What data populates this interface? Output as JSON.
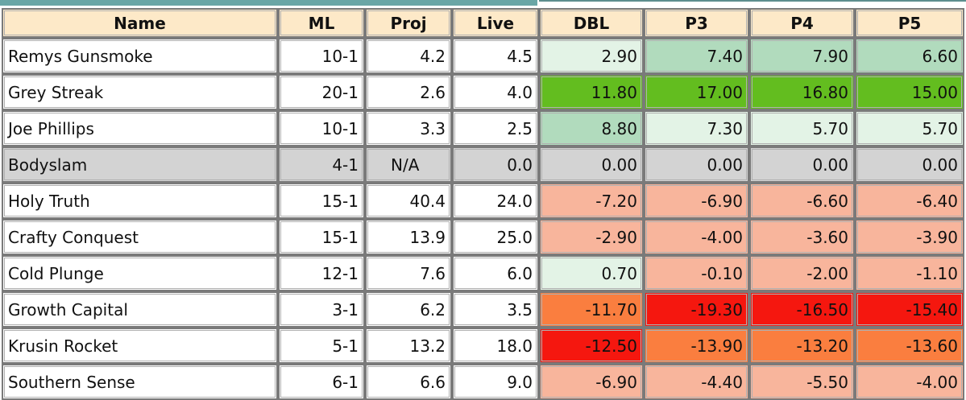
{
  "colors": {
    "header_bg": "#fde9c8",
    "strip": "#6aa6a6",
    "light_green": "#e3f3e6",
    "mid_green": "#b1dbbd",
    "bright_green": "#63bd1f",
    "gray": "#d3d3d3",
    "salmon": "#f8b59c",
    "orange": "#fa7e3f",
    "red": "#f5170f",
    "white": "#ffffff"
  },
  "headers": [
    "Name",
    "ML",
    "Proj",
    "Live",
    "DBL",
    "P3",
    "P4",
    "P5"
  ],
  "rows": [
    {
      "name": "Remys Gunsmoke",
      "ml": "10-1",
      "proj": "4.2",
      "live": "4.5",
      "dbl": {
        "v": "2.90",
        "c": "light_green"
      },
      "p3": {
        "v": "7.40",
        "c": "mid_green"
      },
      "p4": {
        "v": "7.90",
        "c": "mid_green"
      },
      "p5": {
        "v": "6.60",
        "c": "mid_green"
      }
    },
    {
      "name": "Grey Streak",
      "ml": "20-1",
      "proj": "2.6",
      "live": "4.0",
      "dbl": {
        "v": "11.80",
        "c": "bright_green"
      },
      "p3": {
        "v": "17.00",
        "c": "bright_green"
      },
      "p4": {
        "v": "16.80",
        "c": "bright_green"
      },
      "p5": {
        "v": "15.00",
        "c": "bright_green"
      }
    },
    {
      "name": "Joe Phillips",
      "ml": "10-1",
      "proj": "3.3",
      "live": "2.5",
      "dbl": {
        "v": "8.80",
        "c": "mid_green"
      },
      "p3": {
        "v": "7.30",
        "c": "light_green"
      },
      "p4": {
        "v": "5.70",
        "c": "light_green"
      },
      "p5": {
        "v": "5.70",
        "c": "light_green"
      }
    },
    {
      "name": "Bodyslam",
      "ml": "4-1",
      "proj": "N/A",
      "live": "0.0",
      "gray": true,
      "dbl": {
        "v": "0.00",
        "c": "gray"
      },
      "p3": {
        "v": "0.00",
        "c": "gray"
      },
      "p4": {
        "v": "0.00",
        "c": "gray"
      },
      "p5": {
        "v": "0.00",
        "c": "gray"
      }
    },
    {
      "name": "Holy Truth",
      "ml": "15-1",
      "proj": "40.4",
      "live": "24.0",
      "dbl": {
        "v": "-7.20",
        "c": "salmon"
      },
      "p3": {
        "v": "-6.90",
        "c": "salmon"
      },
      "p4": {
        "v": "-6.60",
        "c": "salmon"
      },
      "p5": {
        "v": "-6.40",
        "c": "salmon"
      }
    },
    {
      "name": "Crafty Conquest",
      "ml": "15-1",
      "proj": "13.9",
      "live": "25.0",
      "dbl": {
        "v": "-2.90",
        "c": "salmon"
      },
      "p3": {
        "v": "-4.00",
        "c": "salmon"
      },
      "p4": {
        "v": "-3.60",
        "c": "salmon"
      },
      "p5": {
        "v": "-3.90",
        "c": "salmon"
      }
    },
    {
      "name": "Cold Plunge",
      "ml": "12-1",
      "proj": "7.6",
      "live": "6.0",
      "dbl": {
        "v": "0.70",
        "c": "light_green"
      },
      "p3": {
        "v": "-0.10",
        "c": "salmon"
      },
      "p4": {
        "v": "-2.00",
        "c": "salmon"
      },
      "p5": {
        "v": "-1.10",
        "c": "salmon"
      }
    },
    {
      "name": "Growth Capital",
      "ml": "3-1",
      "proj": "6.2",
      "live": "3.5",
      "dbl": {
        "v": "-11.70",
        "c": "orange"
      },
      "p3": {
        "v": "-19.30",
        "c": "red"
      },
      "p4": {
        "v": "-16.50",
        "c": "red"
      },
      "p5": {
        "v": "-15.40",
        "c": "red"
      }
    },
    {
      "name": "Krusin Rocket",
      "ml": "5-1",
      "proj": "13.2",
      "live": "18.0",
      "dbl": {
        "v": "-12.50",
        "c": "red"
      },
      "p3": {
        "v": "-13.90",
        "c": "orange"
      },
      "p4": {
        "v": "-13.20",
        "c": "orange"
      },
      "p5": {
        "v": "-13.60",
        "c": "orange"
      }
    },
    {
      "name": "Southern Sense",
      "ml": "6-1",
      "proj": "6.6",
      "live": "9.0",
      "dbl": {
        "v": "-6.90",
        "c": "salmon"
      },
      "p3": {
        "v": "-4.40",
        "c": "salmon"
      },
      "p4": {
        "v": "-5.50",
        "c": "salmon"
      },
      "p5": {
        "v": "-4.00",
        "c": "salmon"
      }
    }
  ]
}
